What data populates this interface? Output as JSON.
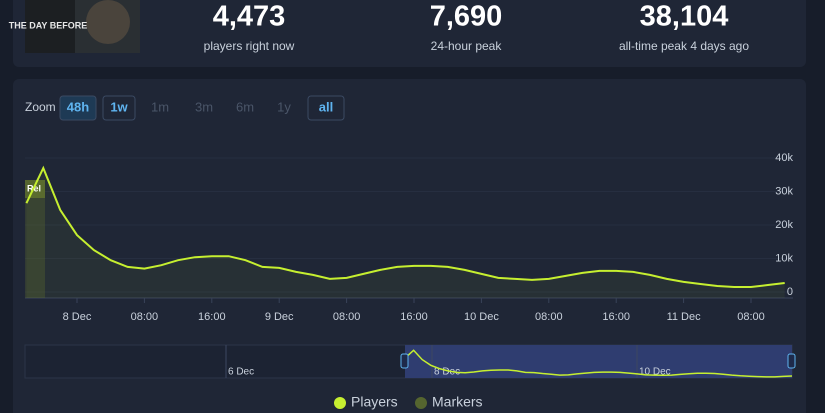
{
  "header": {
    "game_logo_text": "THE DAY BEFORE",
    "stats": [
      {
        "value": "4,473",
        "label": "players right now"
      },
      {
        "value": "7,690",
        "label": "24-hour peak"
      },
      {
        "value": "38,104",
        "label": "all-time peak 4 days ago"
      }
    ]
  },
  "zoom": {
    "label": "Zoom",
    "options": [
      "48h",
      "1w",
      "1m",
      "3m",
      "6m",
      "1y",
      "all"
    ],
    "enabled": [
      true,
      true,
      false,
      false,
      false,
      false,
      true
    ],
    "selected": [
      true,
      false,
      false,
      false,
      false,
      false,
      false
    ]
  },
  "chart_data": {
    "type": "line",
    "categories": [
      null,
      null,
      null,
      "8 Dec",
      null,
      null,
      null,
      "08:00",
      null,
      null,
      null,
      "16:00",
      null,
      null,
      null,
      "9 Dec",
      null,
      null,
      null,
      "08:00",
      null,
      null,
      null,
      "16:00",
      null,
      null,
      null,
      "10 Dec",
      null,
      null,
      null,
      "08:00",
      null,
      null,
      null,
      "16:00",
      null,
      null,
      null,
      "11 Dec",
      null,
      null,
      null,
      "08:00",
      null,
      null
    ],
    "series": [
      {
        "name": "Players",
        "color": "#c6ef30",
        "values": [
          26500,
          37000,
          24500,
          17000,
          12500,
          9500,
          7500,
          7000,
          8000,
          9500,
          10400,
          10700,
          10700,
          9500,
          7500,
          7200,
          6000,
          5100,
          3900,
          4200,
          5400,
          6600,
          7500,
          7800,
          7800,
          7500,
          6600,
          5400,
          4200,
          3900,
          3600,
          3900,
          4800,
          5700,
          6300,
          6300,
          6000,
          5100,
          3900,
          3000,
          2400,
          1800,
          1500,
          1500,
          2100,
          2700
        ]
      }
    ],
    "markers": {
      "name": "Markers",
      "color": "#55652f",
      "labels": [
        "Rel"
      ]
    },
    "ylim": [
      0,
      40000
    ],
    "yticks": [
      0,
      {
        "value": 10000,
        "label": "10k"
      },
      {
        "value": 20000,
        "label": "20k"
      },
      {
        "value": 30000,
        "label": "30k"
      },
      {
        "value": 40000,
        "label": "40k"
      }
    ],
    "navigator": {
      "labels": [
        "6 Dec",
        "8 Dec",
        "10 Dec"
      ]
    }
  }
}
